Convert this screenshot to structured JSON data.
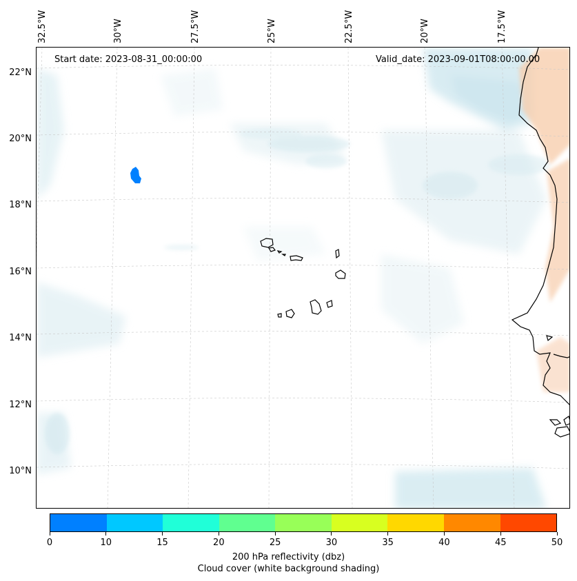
{
  "map": {
    "start_label": "Start date: 2023-08-31_00:00:00",
    "valid_label": "Valid_date: 2023-09-01T08:00:00.00",
    "lon_labels": [
      "32.5°W",
      "30°W",
      "27.5°W",
      "25°W",
      "22.5°W",
      "20°W",
      "17.5°W"
    ],
    "lat_labels": [
      "22°N",
      "20°N",
      "18°N",
      "16°N",
      "14°N",
      "12°N",
      "10°N"
    ]
  },
  "colorbar": {
    "colors": [
      "#0080ff",
      "#00c8ff",
      "#20ffd8",
      "#60ff90",
      "#98ff58",
      "#d8ff20",
      "#ffd800",
      "#ff8800",
      "#ff4800"
    ],
    "ticks": [
      "0",
      "10",
      "15",
      "20",
      "25",
      "30",
      "35",
      "40",
      "45",
      "50"
    ],
    "label_line1": "200 hPa reflectivity (dbz)",
    "label_line2": "Cloud cover (white background shading)"
  }
}
